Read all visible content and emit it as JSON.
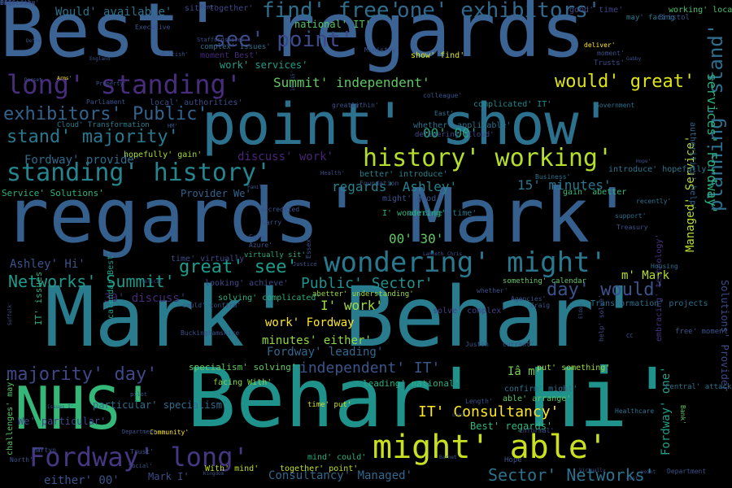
{
  "words": [
    {
      "text": "Best' regards",
      "color": "#3b6394"
    },
    {
      "text": "regards' Mark'",
      "color": "#355f8d"
    },
    {
      "text": "Mark' Behar'",
      "color": "#297b8e"
    },
    {
      "text": "Behar' Hi'",
      "color": "#20928c"
    },
    {
      "text": "point' show'",
      "color": "#2c728e"
    },
    {
      "text": "NHS'",
      "color": "#35b779"
    },
    {
      "text": "might' able'",
      "color": "#c8e020"
    },
    {
      "text": "wondering' might'",
      "color": "#2a788e"
    },
    {
      "text": "long' standing'",
      "color": "#472d7b"
    },
    {
      "text": "Fordway' long'",
      "color": "#453781"
    },
    {
      "text": "history' working'",
      "color": "#b5de2b"
    },
    {
      "text": "standing' history'",
      "color": "#25848e"
    },
    {
      "text": "find' free'",
      "color": "#2d708e"
    },
    {
      "text": "one' exhibitors'",
      "color": "#31688e"
    },
    {
      "text": "see' point'",
      "color": "#3e4989"
    },
    {
      "text": "exhibitors' Public'",
      "color": "#33638d"
    },
    {
      "text": "would' great'",
      "color": "#dde318"
    },
    {
      "text": "stand' majority'",
      "color": "#2a788e"
    },
    {
      "text": "majority' day'",
      "color": "#3f4788"
    },
    {
      "text": "great' see'",
      "color": "#1e9b8a"
    },
    {
      "text": "IT' Consultancy'",
      "color": "#fde725"
    },
    {
      "text": "day' would'",
      "color": "#3b528b"
    },
    {
      "text": "Summit' independent'",
      "color": "#5ec962"
    },
    {
      "text": "Networks' Summit'",
      "color": "#1f9a8a"
    },
    {
      "text": "Public' Sector'",
      "color": "#21918c"
    },
    {
      "text": "Sector' Networks'",
      "color": "#2c728e"
    },
    {
      "text": "planning' stand'",
      "color": "#2e6e8e"
    },
    {
      "text": "services' Fordway'",
      "color": "#2ab07f"
    },
    {
      "text": "Managed' Service'",
      "color": "#b8de29"
    },
    {
      "text": "Fordway' one'",
      "color": "#1fa188"
    },
    {
      "text": "independent' IT'",
      "color": "#3a548c"
    },
    {
      "text": "regards' Ashley'",
      "color": "#25838e"
    },
    {
      "text": "15' minutes'",
      "color": "#2b758e"
    },
    {
      "text": "00' 30'",
      "color": "#5ec962"
    },
    {
      "text": "00' 00'",
      "color": "#22a884"
    },
    {
      "text": "I' work'",
      "color": "#a0da39"
    },
    {
      "text": "work' Fordway",
      "color": "#fde725"
    },
    {
      "text": "minutes' either'",
      "color": "#8fd744"
    },
    {
      "text": "Fordway' leading'",
      "color": "#31688e"
    },
    {
      "text": "Consultancy' Managed'",
      "color": "#31688e"
    },
    {
      "text": "Ashley' Hi'",
      "color": "#3b528b"
    },
    {
      "text": "m' Mark",
      "color": "#b5de2b"
    },
    {
      "text": "Iâ m'",
      "color": "#7ad151"
    },
    {
      "text": "Would' available'",
      "color": "#2c728e"
    },
    {
      "text": "national' IT'",
      "color": "#54c568"
    },
    {
      "text": "work' services'",
      "color": "#1f9e89"
    },
    {
      "text": "Fordway' provide'",
      "color": "#2f6c8e"
    },
    {
      "text": "discuss' work'",
      "color": "#482475"
    },
    {
      "text": "30' discuss'",
      "color": "#482878"
    },
    {
      "text": "Best' regards'",
      "color": "#32b67a"
    },
    {
      "text": "either' 00'",
      "color": "#3b528b"
    },
    {
      "text": "Mark I'",
      "color": "#3e4a89"
    },
    {
      "text": "We' particular'",
      "color": "#404588"
    },
    {
      "text": "particular' specialism'",
      "color": "#2e6f8e"
    },
    {
      "text": "specialism' solving'",
      "color": "#5ec962"
    },
    {
      "text": "facing With'",
      "color": "#86d549"
    },
    {
      "text": "leading' national'",
      "color": "#28ae80"
    },
    {
      "text": "together' point'",
      "color": "#c2df23"
    },
    {
      "text": "With' mind'",
      "color": "#bddf26"
    },
    {
      "text": "mind' could'",
      "color": "#2ab07f"
    },
    {
      "text": "might' good'",
      "color": "#3a548c"
    },
    {
      "text": "arrange' time'",
      "color": "#2a788e"
    },
    {
      "text": "I' wondering'",
      "color": "#2fb47c"
    },
    {
      "text": "put' something'",
      "color": "#a2da37"
    },
    {
      "text": "confirm' might'",
      "color": "#2c728e"
    },
    {
      "text": "able' arrange'",
      "color": "#5cc863"
    },
    {
      "text": "Cloud' Transformation",
      "color": "#287d8e"
    },
    {
      "text": "complicated' IT'",
      "color": "#23888e"
    },
    {
      "text": "hopefully' gain'",
      "color": "#a8db34"
    },
    {
      "text": "show' find'",
      "color": "#dde318"
    },
    {
      "text": "local' authorities'",
      "color": "#3d4d8a"
    },
    {
      "text": "Service' Solutions'",
      "color": "#2db27d"
    },
    {
      "text": "Provider We'",
      "color": "#33638d"
    },
    {
      "text": "solve' complex'",
      "color": "#424086"
    },
    {
      "text": "whether' applicable'",
      "color": "#2c728e"
    },
    {
      "text": "delivering' Cloud'",
      "color": "#3e4a89"
    },
    {
      "text": "better' introduce'",
      "color": "#25848e"
    },
    {
      "text": "complex' issues'",
      "color": "#2c728e"
    },
    {
      "text": "Solutions' Provider",
      "color": "#3e4989"
    },
    {
      "text": "embracing' technology'",
      "color": "#46327e"
    },
    {
      "text": "Transformation' projects",
      "color": "#2e6f8e"
    },
    {
      "text": "abetter' understanding'",
      "color": "#9bd93c"
    },
    {
      "text": "looking' achieve'",
      "color": "#3e4989"
    },
    {
      "text": "solving' complicated'",
      "color": "#2ab07f"
    },
    {
      "text": "IT' issues",
      "color": "#26ad81"
    },
    {
      "text": "calendar Best'",
      "color": "#1fa188"
    },
    {
      "text": "authorities' help'",
      "color": "#33638d"
    },
    {
      "text": "challenges' may'",
      "color": "#56c667"
    },
    {
      "text": "something' calendar",
      "color": "#5dc863"
    },
    {
      "text": "gain' abetter",
      "color": "#35b779"
    },
    {
      "text": "introduce' hopefully'",
      "color": "#2a788e"
    },
    {
      "text": "working' local'",
      "color": "#4ac16d"
    },
    {
      "text": "good' time'",
      "color": "#3f4788"
    },
    {
      "text": "sit' together'",
      "color": "#3f4788"
    },
    {
      "text": "moment Best'",
      "color": "#472c7a"
    },
    {
      "text": "time' virtually",
      "color": "#3e4a89"
    },
    {
      "text": "time' put'",
      "color": "#d0e11c"
    },
    {
      "text": "help' solve'",
      "color": "#3e4989"
    },
    {
      "text": "virtually sit'",
      "color": "#26ad81"
    },
    {
      "text": "may' facing",
      "color": "#2a788e"
    },
    {
      "text": "Bristol",
      "color": "#3b528b"
    },
    {
      "text": "free' moment",
      "color": "#3b528b"
    },
    {
      "text": "Central' attack'",
      "color": "#2c728e"
    },
    {
      "text": "Bank'",
      "color": "#5ec962"
    },
    {
      "text": "Healthcare",
      "color": "#2c728e"
    },
    {
      "text": "Housing",
      "color": "#2c728e"
    },
    {
      "text": "Treasury",
      "color": "#3b528b"
    },
    {
      "text": "support'",
      "color": "#2c728e"
    },
    {
      "text": "recently'",
      "color": "#2c728e"
    },
    {
      "text": "Business'",
      "color": "#2c728e"
    },
    {
      "text": "Government",
      "color": "#2c728e"
    },
    {
      "text": "Foundation",
      "color": "#3b528b"
    },
    {
      "text": "Essex'",
      "color": "#3b528b"
    },
    {
      "text": "Trusts'",
      "color": "#3e4989"
    },
    {
      "text": "deliver'",
      "color": "#fde725"
    },
    {
      "text": "moment'",
      "color": "#3b528b"
    },
    {
      "text": "East'",
      "color": "#2c728e"
    },
    {
      "text": "colleague'",
      "color": "#3b528b"
    },
    {
      "text": "Ministry'",
      "color": "#3b528b"
    },
    {
      "text": "within'",
      "color": "#3b528b"
    },
    {
      "text": "Health'",
      "color": "#3e4989"
    },
    {
      "text": "accredited",
      "color": "#3b528b"
    },
    {
      "text": "Justice",
      "color": "#3b528b"
    },
    {
      "text": "Garry",
      "color": "#3b528b"
    },
    {
      "text": "Cara",
      "color": "#3b528b"
    },
    {
      "text": "Azure'",
      "color": "#3b528b"
    },
    {
      "text": "greatly'",
      "color": "#3b528b"
    },
    {
      "text": "whether'",
      "color": "#3b528b"
    },
    {
      "text": "could' confirm'",
      "color": "#3b528b"
    },
    {
      "text": "Buckinghamshire",
      "color": "#3b528b"
    },
    {
      "text": "Agencies'",
      "color": "#3b528b"
    },
    {
      "text": "Craig",
      "color": "#3b528b"
    },
    {
      "text": "Justin",
      "color": "#3b528b"
    },
    {
      "text": "Length'",
      "color": "#3b528b"
    },
    {
      "text": "current'",
      "color": "#3b528b"
    },
    {
      "text": "informal'",
      "color": "#3b528b"
    },
    {
      "text": "Hope",
      "color": "#3b528b"
    },
    {
      "text": "Trust'",
      "color": "#3b528b"
    },
    {
      "text": "Community'",
      "color": "#fde725"
    },
    {
      "text": "Department",
      "color": "#3b528b"
    },
    {
      "text": "Social'",
      "color": "#3b528b"
    },
    {
      "text": "pilot",
      "color": "#3b528b"
    },
    {
      "text": "Martyn",
      "color": "#3b528b"
    },
    {
      "text": "North'",
      "color": "#3b528b"
    },
    {
      "text": "Suffolk'",
      "color": "#3b528b"
    },
    {
      "text": "Arms'",
      "color": "#fde725"
    },
    {
      "text": "Property'",
      "color": "#3b528b"
    },
    {
      "text": "Parliament",
      "color": "#3b528b"
    },
    {
      "text": "England'",
      "color": "#3b528b"
    },
    {
      "text": "British'",
      "color": "#3b528b"
    },
    {
      "text": "Staffordshire'",
      "color": "#3b528b"
    },
    {
      "text": "HM'",
      "color": "#3b528b"
    },
    {
      "text": "Kent'",
      "color": "#3b528b"
    },
    {
      "text": "Executive",
      "color": "#3b528b"
    },
    {
      "text": "Family",
      "color": "#3b528b"
    },
    {
      "text": "Chris",
      "color": "#3b528b"
    },
    {
      "text": "10' 15'",
      "color": "#3b528b"
    },
    {
      "text": "Lambeth",
      "color": "#3b528b"
    },
    {
      "text": "CC",
      "color": "#3b528b"
    },
    {
      "text": "Eldon",
      "color": "#3b528b"
    },
    {
      "text": "Department",
      "color": "#3b528b"
    },
    {
      "text": "point",
      "color": "#3b528b"
    },
    {
      "text": "Virtually",
      "color": "#3b528b"
    },
    {
      "text": "issues I'",
      "color": "#3b528b"
    },
    {
      "text": "cost",
      "color": "#3b528b"
    },
    {
      "text": "Kingdom",
      "color": "#3b528b"
    },
    {
      "text": "Lord",
      "color": "#3b528b"
    },
    {
      "text": "Defra",
      "color": "#3b528b"
    },
    {
      "text": "Gabby",
      "color": "#3b528b"
    },
    {
      "text": "Hope'",
      "color": "#3b528b"
    },
    {
      "text": "Dorset",
      "color": "#3b528b"
    },
    {
      "text": "solicit",
      "color": "#3b528b"
    },
    {
      "text": "Barnet",
      "color": "#3b528b"
    },
    {
      "text": "Sanctuary",
      "color": "#3b528b"
    },
    {
      "text": "regarding'",
      "color": "#3b528b"
    },
    {
      "text": "Official",
      "color": "#3b528b"
    },
    {
      "text": "Gen",
      "color": "#3b528b"
    },
    {
      "text": "BEIS",
      "color": "#3b528b"
    }
  ]
}
